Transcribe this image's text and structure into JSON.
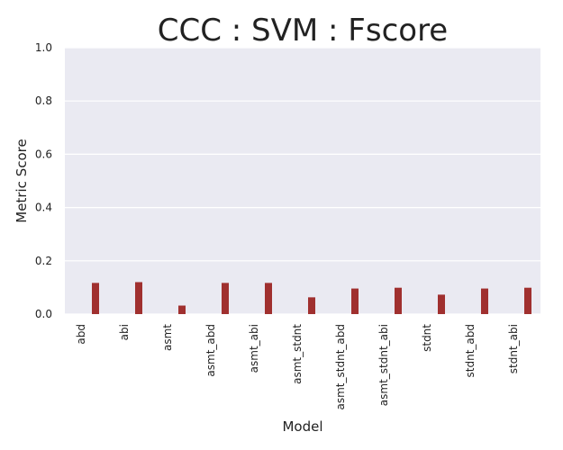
{
  "chart_data": {
    "type": "bar",
    "title": "CCC : SVM : Fscore",
    "xlabel": "Model",
    "ylabel": "Metric Score",
    "categories": [
      "abd",
      "abi",
      "asmt",
      "asmt_abd",
      "asmt_abi",
      "asmt_stdnt",
      "asmt_stdnt_abd",
      "asmt_stdnt_abi",
      "stdnt",
      "stdnt_abd",
      "stdnt_abi"
    ],
    "values": [
      0.117,
      0.12,
      0.032,
      0.117,
      0.117,
      0.063,
      0.096,
      0.099,
      0.073,
      0.096,
      0.099
    ],
    "ylim": [
      0,
      1.0
    ],
    "yticks": [
      "0.0",
      "0.2",
      "0.4",
      "0.6",
      "0.8",
      "1.0"
    ],
    "grid": true,
    "colors": {
      "bar": "#a0302f",
      "plot_background": "#eaeaf2",
      "grid": "#ffffff"
    }
  }
}
